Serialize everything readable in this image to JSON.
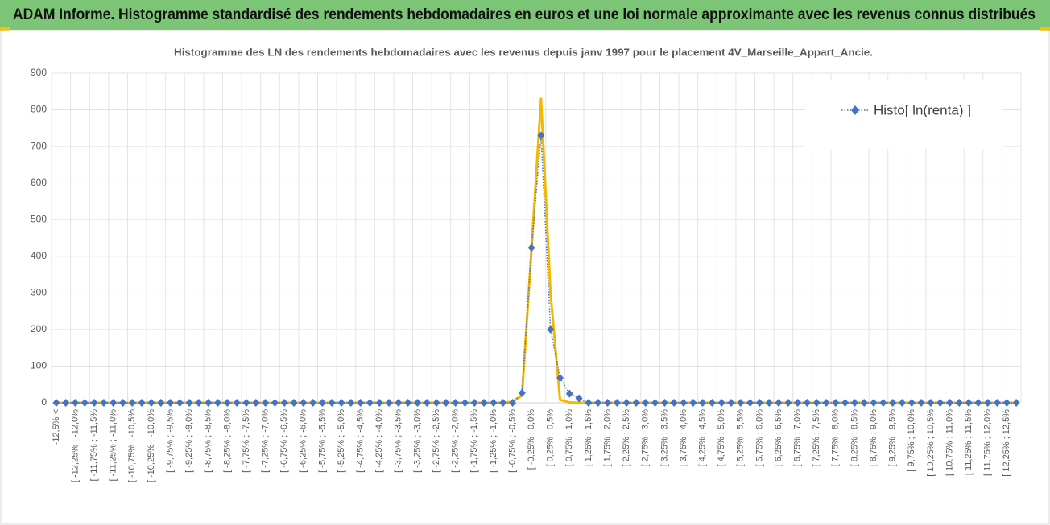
{
  "page_title": "ADAM Informe. Histogramme standardisé des rendements hebdomadaires en euros et une loi normale approximante avec les revenus connus distribués",
  "chart_data": {
    "type": "line",
    "title": "Histogramme  des LN des rendements  hebdomadaires avec les revenus depuis janv 1997 pour le placement 4V_Marseille_Appart_Ancie.",
    "categories": [
      "-12,5% <",
      null,
      "[ -12,25% ; -12,0%",
      null,
      "[ -11,75% ; -11,5%",
      null,
      "[ -11,25% ; -11,0%",
      null,
      "[ -10,75% ; -10,5%",
      null,
      "[ -10,25% ; -10,0%",
      null,
      "[ -9,75% ; -9,5%",
      null,
      "[ -9,25% ; -9,0%",
      null,
      "[ -8,75% ; -8,5%",
      null,
      "[ -8,25% ; -8,0%",
      null,
      "[ -7,75% ; -7,5%",
      null,
      "[ -7,25% ; -7,0%",
      null,
      "[ -6,75% ; -6,5%",
      null,
      "[ -6,25% ; -6,0%",
      null,
      "[ -5,75% ; -5,5%",
      null,
      "[ -5,25% ; -5,0%",
      null,
      "[ -4,75% ; -4,5%",
      null,
      "[ -4,25% ; -4,0%",
      null,
      "[ -3,75% ; -3,5%",
      null,
      "[ -3,25% ; -3,0%",
      null,
      "[ -2,75% ; -2,5%",
      null,
      "[ -2,25% ; -2,0%",
      null,
      "[ -1,75% ; -1,5%",
      null,
      "[ -1,25% ; -1,0%",
      null,
      "[ -0,75% ; -0,5%",
      null,
      "[ -0,25% ; 0,0%",
      null,
      "[ 0,25% ; 0,5%",
      null,
      "[ 0,75% ; 1,0%",
      null,
      "[ 1,25% ; 1,5%",
      null,
      "[ 1,75% ; 2,0%",
      null,
      "[ 2,25% ; 2,5%",
      null,
      "[ 2,75% ; 3,0%",
      null,
      "[ 3,25% ; 3,5%",
      null,
      "[ 3,75% ; 4,0%",
      null,
      "[ 4,25% ; 4,5%",
      null,
      "[ 4,75% ; 5,0%",
      null,
      "[ 5,25% ; 5,5%",
      null,
      "[ 5,75% ; 6,0%",
      null,
      "[ 6,25% ; 6,5%",
      null,
      "[ 6,75% ; 7,0%",
      null,
      "[ 7,25% ; 7,5%",
      null,
      "[ 7,75% ; 8,0%",
      null,
      "[ 8,25% ; 8,5%",
      null,
      "[ 8,75% ; 9,0%",
      null,
      "[ 9,25% ; 9,5%",
      null,
      "[ 9,75% ; 10,0%",
      null,
      "[ 10,25% ; 10,5%",
      null,
      "[ 10,75% ; 11,0%",
      null,
      "[ 11,25% ; 11,5%",
      null,
      "[ 11,75% ; 12,0%",
      null,
      "[ 12,25% ; 12,5%",
      null
    ],
    "series": [
      {
        "name": "Histo[ ln(renta) ]",
        "color": "#4472c4",
        "markers": true,
        "dotted": true,
        "values": [
          0,
          0,
          0,
          0,
          0,
          0,
          0,
          0,
          0,
          0,
          0,
          0,
          0,
          0,
          0,
          0,
          0,
          0,
          0,
          0,
          0,
          0,
          0,
          0,
          0,
          0,
          0,
          0,
          0,
          0,
          0,
          0,
          0,
          0,
          0,
          0,
          0,
          0,
          0,
          0,
          0,
          0,
          0,
          0,
          0,
          0,
          0,
          0,
          0,
          27,
          423,
          730,
          200,
          68,
          25,
          12,
          0,
          0,
          0,
          0,
          0,
          0,
          0,
          0,
          0,
          0,
          0,
          0,
          0,
          0,
          0,
          0,
          0,
          0,
          0,
          0,
          0,
          0,
          0,
          0,
          0,
          0,
          0,
          0,
          0,
          0,
          0,
          0,
          0,
          0,
          0,
          0,
          0,
          0,
          0,
          0,
          0,
          0,
          0,
          0,
          0,
          0
        ]
      },
      {
        "color": "#f5b800",
        "markers": false,
        "dotted": false,
        "values": [
          0,
          0,
          0,
          0,
          0,
          0,
          0,
          0,
          0,
          0,
          0,
          0,
          0,
          0,
          0,
          0,
          0,
          0,
          0,
          0,
          0,
          0,
          0,
          0,
          0,
          0,
          0,
          0,
          0,
          0,
          0,
          0,
          0,
          0,
          0,
          0,
          0,
          0,
          0,
          0,
          0,
          0,
          0,
          0,
          0,
          0,
          0,
          0,
          3,
          20,
          420,
          830,
          300,
          8,
          1,
          0,
          0,
          0,
          0,
          0,
          0,
          0,
          0,
          0,
          0,
          0,
          0,
          0,
          0,
          0,
          0,
          0,
          0,
          0,
          0,
          0,
          0,
          0,
          0,
          0,
          0,
          0,
          0,
          0,
          0,
          0,
          0,
          0,
          0,
          0,
          0,
          0,
          0,
          0,
          0,
          0,
          0,
          0,
          0,
          0,
          0,
          0
        ]
      }
    ],
    "ylim": [
      0,
      900
    ],
    "yticks": [
      0,
      100,
      200,
      300,
      400,
      500,
      600,
      700,
      800,
      900
    ],
    "grid": true
  }
}
